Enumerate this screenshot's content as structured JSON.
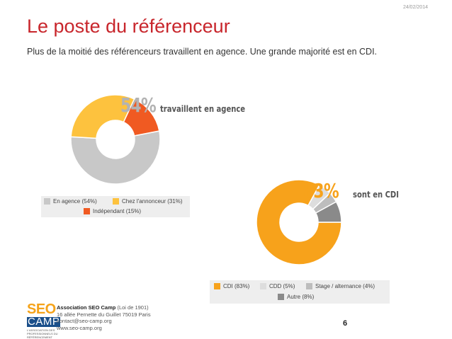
{
  "date": "24/02/2014",
  "title": "Le poste du référenceur",
  "subtitle": "Plus de la moitié des référenceurs travaillent en agence. Une grande majorité est en CDI.",
  "chart_data": [
    {
      "type": "pie",
      "style": "donut",
      "headline_value": "54%",
      "headline_label": "travaillent en agence",
      "slices": [
        {
          "label": "En agence (54%)",
          "value": 54,
          "color": "#c8c8c8"
        },
        {
          "label": "Chez l'annonceur (31%)",
          "value": 31,
          "color": "#fdc23e"
        },
        {
          "label": "Indépendant (15%)",
          "value": 15,
          "color": "#f05a22"
        }
      ],
      "legend_placement": "bottom"
    },
    {
      "type": "pie",
      "style": "donut",
      "headline_value": "83%",
      "headline_label": "sont en CDI",
      "slices": [
        {
          "label": "CDI (83%)",
          "value": 83,
          "color": "#f7a21b"
        },
        {
          "label": "CDD (5%)",
          "value": 5,
          "color": "#dddddd"
        },
        {
          "label": "Stage / alternance (4%)",
          "value": 4,
          "color": "#bdbdbd"
        },
        {
          "label": "Autre (8%)",
          "value": 8,
          "color": "#8a8a8a"
        }
      ],
      "legend_placement": "bottom"
    }
  ],
  "footer": {
    "logo_top": "SEO",
    "logo_bottom": "CAMP",
    "logo_small": "L'ASSOCIATION DES PROFESSIONNELS DU RÉFÉRENCEMENT",
    "org_name": "Association SEO Camp",
    "org_note": " (Loi de 1901)",
    "address": "16 allée Pernette du Guillet 75019 Paris",
    "email": "contact@seo-camp.org",
    "website": "www.seo-camp.org"
  },
  "page_number": "6"
}
